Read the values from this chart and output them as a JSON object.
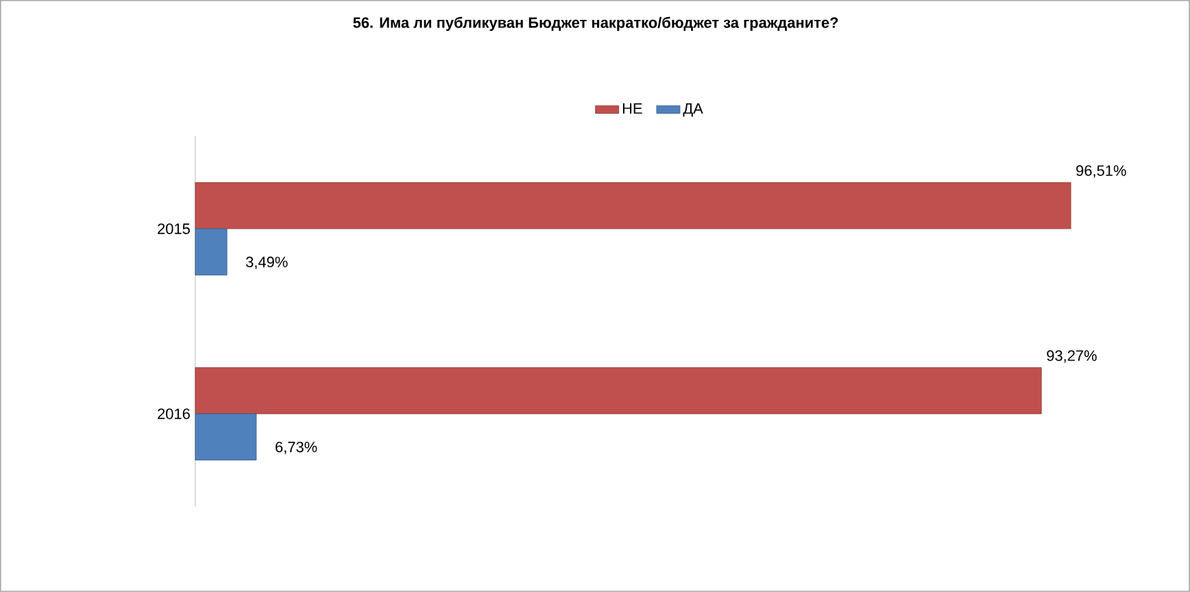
{
  "chart_data": {
    "type": "bar",
    "orientation": "horizontal",
    "title": "56. Има ли публикуван Бюджет накратко/бюджет за гражданите?",
    "categories": [
      "2015",
      "2016"
    ],
    "series": [
      {
        "name": "НЕ",
        "color": "#c0504d",
        "values": [
          96.51,
          93.27
        ],
        "value_labels": [
          "96,51%",
          "93,27%"
        ]
      },
      {
        "name": "ДА",
        "color": "#4f81bd",
        "values": [
          3.49,
          6.73
        ],
        "value_labels": [
          "3,49%",
          "6,73%"
        ]
      }
    ],
    "legend": "top",
    "tick_labels": "y"
  }
}
